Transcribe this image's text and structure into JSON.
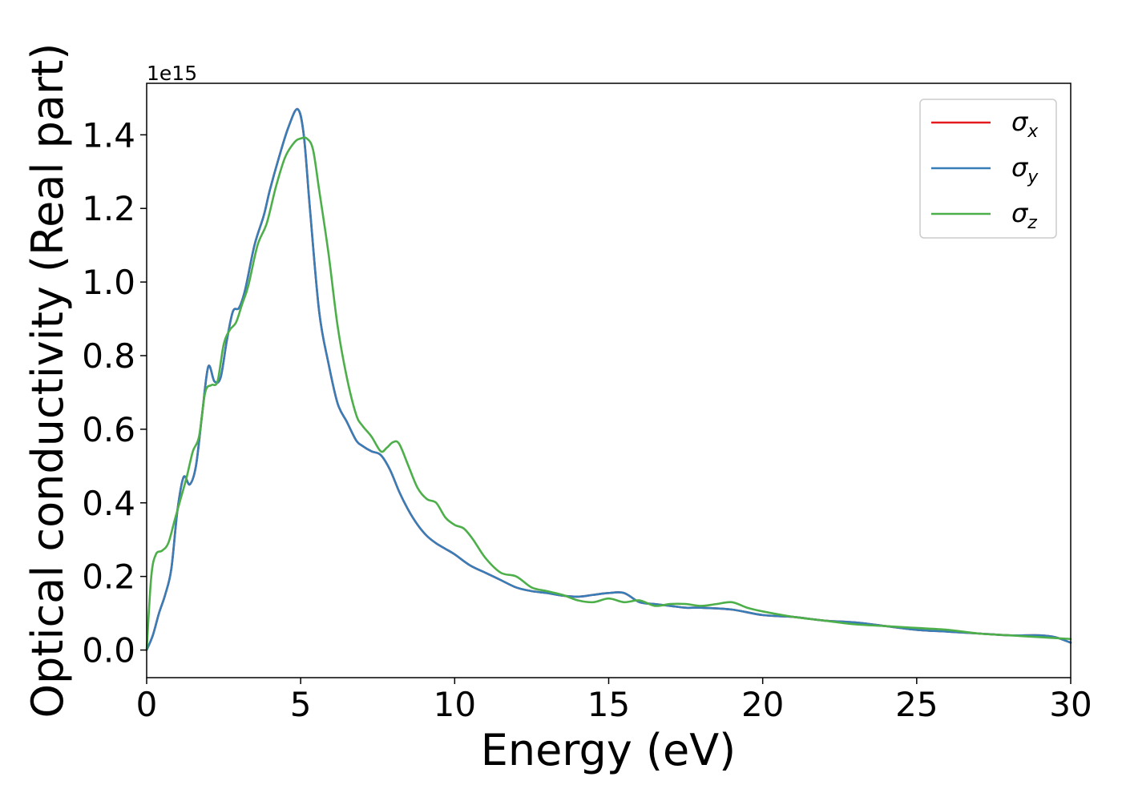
{
  "chart_data": {
    "type": "line",
    "title": "",
    "xlabel": "Energy (eV)",
    "ylabel": "Optical conductivity (Real part)",
    "y_offset_label": "1e15",
    "xlim": [
      0,
      30
    ],
    "ylim": [
      -0.075,
      1.54
    ],
    "x_ticks": [
      0,
      5,
      10,
      15,
      20,
      25,
      30
    ],
    "x_tick_labels": [
      "0",
      "5",
      "10",
      "15",
      "20",
      "25",
      "30"
    ],
    "y_ticks": [
      0.0,
      0.2,
      0.4,
      0.6,
      0.8,
      1.0,
      1.2,
      1.4
    ],
    "y_tick_labels": [
      "0.0",
      "0.2",
      "0.4",
      "0.6",
      "0.8",
      "1.0",
      "1.2",
      "1.4"
    ],
    "grid": false,
    "legend_position": "top-right",
    "series": [
      {
        "name": "σx",
        "symbol": "σ",
        "subscript": "x",
        "color": "#e41a1c",
        "x": [
          0,
          0.2,
          0.4,
          0.6,
          0.8,
          1.0,
          1.2,
          1.4,
          1.6,
          1.8,
          2.0,
          2.2,
          2.4,
          2.6,
          2.8,
          3.0,
          3.2,
          3.5,
          3.8,
          4.0,
          4.3,
          4.6,
          4.9,
          5.1,
          5.3,
          5.6,
          5.9,
          6.2,
          6.5,
          6.8,
          7.0,
          7.3,
          7.6,
          7.9,
          8.2,
          8.5,
          8.8,
          9.1,
          9.4,
          9.7,
          10.0,
          10.5,
          11.0,
          11.5,
          12.0,
          12.5,
          13.0,
          13.5,
          14.0,
          14.5,
          15.0,
          15.5,
          16.0,
          16.5,
          17.0,
          17.5,
          18.0,
          19.0,
          20.0,
          21.0,
          22.0,
          23.0,
          24.0,
          25.0,
          26.0,
          27.0,
          28.0,
          29.0,
          29.5,
          30.0
        ],
        "values": [
          0.0,
          0.04,
          0.1,
          0.15,
          0.22,
          0.38,
          0.47,
          0.45,
          0.5,
          0.64,
          0.77,
          0.73,
          0.74,
          0.84,
          0.92,
          0.93,
          0.98,
          1.1,
          1.18,
          1.25,
          1.34,
          1.42,
          1.47,
          1.4,
          1.2,
          0.92,
          0.78,
          0.67,
          0.62,
          0.57,
          0.555,
          0.54,
          0.53,
          0.49,
          0.43,
          0.38,
          0.34,
          0.31,
          0.29,
          0.275,
          0.26,
          0.23,
          0.21,
          0.19,
          0.17,
          0.16,
          0.155,
          0.148,
          0.145,
          0.15,
          0.155,
          0.155,
          0.13,
          0.125,
          0.12,
          0.115,
          0.115,
          0.11,
          0.095,
          0.09,
          0.08,
          0.075,
          0.065,
          0.055,
          0.05,
          0.045,
          0.04,
          0.04,
          0.035,
          0.02
        ]
      },
      {
        "name": "σy",
        "symbol": "σ",
        "subscript": "y",
        "color": "#377eb8",
        "x": [
          0,
          0.2,
          0.4,
          0.6,
          0.8,
          1.0,
          1.2,
          1.4,
          1.6,
          1.8,
          2.0,
          2.2,
          2.4,
          2.6,
          2.8,
          3.0,
          3.2,
          3.5,
          3.8,
          4.0,
          4.3,
          4.6,
          4.9,
          5.1,
          5.3,
          5.6,
          5.9,
          6.2,
          6.5,
          6.8,
          7.0,
          7.3,
          7.6,
          7.9,
          8.2,
          8.5,
          8.8,
          9.1,
          9.4,
          9.7,
          10.0,
          10.5,
          11.0,
          11.5,
          12.0,
          12.5,
          13.0,
          13.5,
          14.0,
          14.5,
          15.0,
          15.5,
          16.0,
          16.5,
          17.0,
          17.5,
          18.0,
          19.0,
          20.0,
          21.0,
          22.0,
          23.0,
          24.0,
          25.0,
          26.0,
          27.0,
          28.0,
          29.0,
          29.5,
          30.0
        ],
        "values": [
          0.0,
          0.04,
          0.1,
          0.15,
          0.22,
          0.38,
          0.47,
          0.45,
          0.5,
          0.64,
          0.77,
          0.73,
          0.74,
          0.84,
          0.92,
          0.93,
          0.98,
          1.1,
          1.18,
          1.25,
          1.34,
          1.42,
          1.47,
          1.4,
          1.2,
          0.92,
          0.78,
          0.67,
          0.62,
          0.57,
          0.555,
          0.54,
          0.53,
          0.49,
          0.43,
          0.38,
          0.34,
          0.31,
          0.29,
          0.275,
          0.26,
          0.23,
          0.21,
          0.19,
          0.17,
          0.16,
          0.155,
          0.148,
          0.145,
          0.15,
          0.155,
          0.155,
          0.13,
          0.125,
          0.12,
          0.115,
          0.115,
          0.11,
          0.095,
          0.09,
          0.08,
          0.075,
          0.065,
          0.055,
          0.05,
          0.045,
          0.04,
          0.04,
          0.035,
          0.02
        ]
      },
      {
        "name": "σz",
        "symbol": "σ",
        "subscript": "z",
        "color": "#4daf4a",
        "x": [
          0,
          0.15,
          0.3,
          0.5,
          0.7,
          0.9,
          1.1,
          1.3,
          1.5,
          1.7,
          1.9,
          2.1,
          2.3,
          2.5,
          2.7,
          2.9,
          3.1,
          3.3,
          3.6,
          3.9,
          4.2,
          4.5,
          4.8,
          5.0,
          5.2,
          5.4,
          5.6,
          5.9,
          6.2,
          6.5,
          6.8,
          7.0,
          7.3,
          7.6,
          7.8,
          8.0,
          8.2,
          8.5,
          8.8,
          9.1,
          9.4,
          9.7,
          10.0,
          10.3,
          10.6,
          11.0,
          11.5,
          12.0,
          12.5,
          13.0,
          13.5,
          14.0,
          14.5,
          15.0,
          15.5,
          16.0,
          16.5,
          17.0,
          17.5,
          18.0,
          18.5,
          19.0,
          19.5,
          20.0,
          21.0,
          22.0,
          23.0,
          24.0,
          25.0,
          26.0,
          27.0,
          28.0,
          29.0,
          30.0
        ],
        "values": [
          0.0,
          0.2,
          0.26,
          0.27,
          0.29,
          0.35,
          0.41,
          0.47,
          0.54,
          0.58,
          0.7,
          0.72,
          0.73,
          0.83,
          0.87,
          0.89,
          0.94,
          0.99,
          1.1,
          1.16,
          1.26,
          1.34,
          1.38,
          1.39,
          1.39,
          1.36,
          1.25,
          1.08,
          0.88,
          0.74,
          0.64,
          0.61,
          0.58,
          0.54,
          0.55,
          0.565,
          0.56,
          0.5,
          0.44,
          0.41,
          0.4,
          0.36,
          0.34,
          0.33,
          0.3,
          0.25,
          0.21,
          0.2,
          0.17,
          0.16,
          0.15,
          0.135,
          0.13,
          0.14,
          0.13,
          0.135,
          0.12,
          0.125,
          0.125,
          0.12,
          0.125,
          0.13,
          0.115,
          0.105,
          0.09,
          0.08,
          0.07,
          0.065,
          0.06,
          0.055,
          0.045,
          0.04,
          0.035,
          0.03
        ]
      }
    ]
  }
}
